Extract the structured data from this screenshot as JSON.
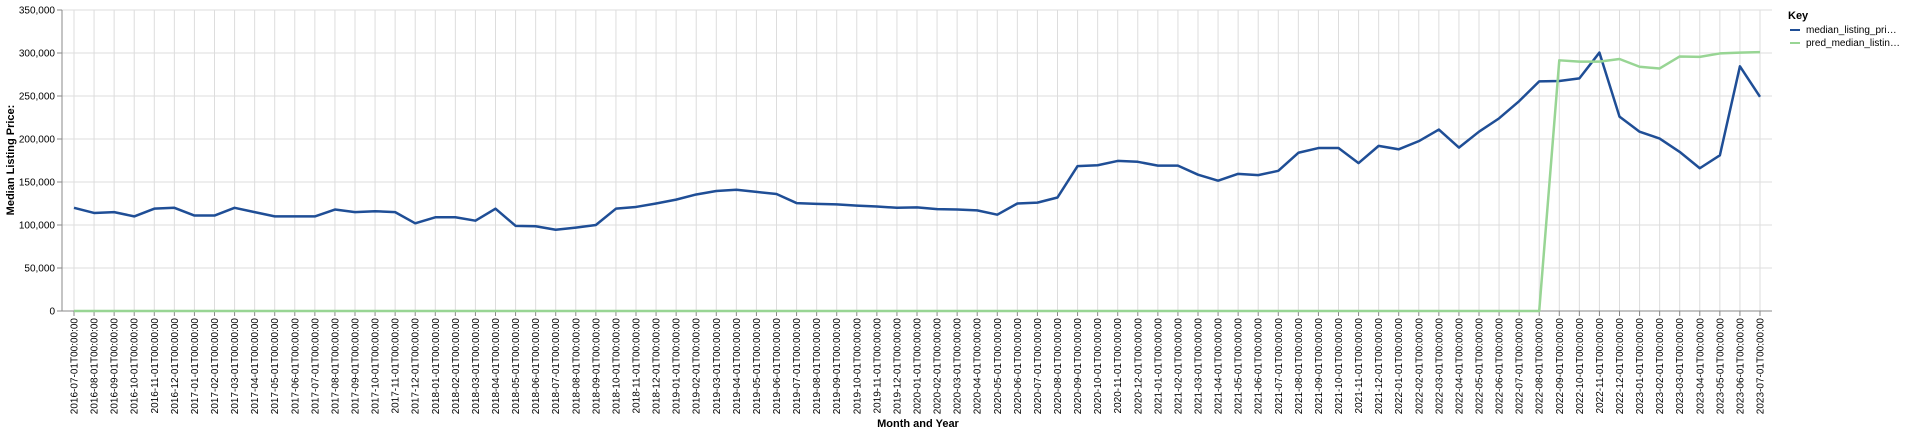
{
  "chart_data": {
    "type": "line",
    "xlabel": "Month and Year",
    "ylabel": "Median Listing Price:",
    "ylim": [
      0,
      350000
    ],
    "y_ticks": [
      "0",
      "50,000",
      "100,000",
      "150,000",
      "200,000",
      "250,000",
      "300,000",
      "350,000"
    ],
    "grid": true,
    "legend": {
      "title": "Key",
      "position": "top-right"
    },
    "categories": [
      "2016-07-01T00:00:00",
      "2016-08-01T00:00:00",
      "2016-09-01T00:00:00",
      "2016-10-01T00:00:00",
      "2016-11-01T00:00:00",
      "2016-12-01T00:00:00",
      "2017-01-01T00:00:00",
      "2017-02-01T00:00:00",
      "2017-03-01T00:00:00",
      "2017-04-01T00:00:00",
      "2017-05-01T00:00:00",
      "2017-06-01T00:00:00",
      "2017-07-01T00:00:00",
      "2017-08-01T00:00:00",
      "2017-09-01T00:00:00",
      "2017-10-01T00:00:00",
      "2017-11-01T00:00:00",
      "2017-12-01T00:00:00",
      "2018-01-01T00:00:00",
      "2018-02-01T00:00:00",
      "2018-03-01T00:00:00",
      "2018-04-01T00:00:00",
      "2018-05-01T00:00:00",
      "2018-06-01T00:00:00",
      "2018-07-01T00:00:00",
      "2018-08-01T00:00:00",
      "2018-09-01T00:00:00",
      "2018-10-01T00:00:00",
      "2018-11-01T00:00:00",
      "2018-12-01T00:00:00",
      "2019-01-01T00:00:00",
      "2019-02-01T00:00:00",
      "2019-03-01T00:00:00",
      "2019-04-01T00:00:00",
      "2019-05-01T00:00:00",
      "2019-06-01T00:00:00",
      "2019-07-01T00:00:00",
      "2019-08-01T00:00:00",
      "2019-09-01T00:00:00",
      "2019-10-01T00:00:00",
      "2019-11-01T00:00:00",
      "2019-12-01T00:00:00",
      "2020-01-01T00:00:00",
      "2020-02-01T00:00:00",
      "2020-03-01T00:00:00",
      "2020-04-01T00:00:00",
      "2020-05-01T00:00:00",
      "2020-06-01T00:00:00",
      "2020-07-01T00:00:00",
      "2020-08-01T00:00:00",
      "2020-09-01T00:00:00",
      "2020-10-01T00:00:00",
      "2020-11-01T00:00:00",
      "2020-12-01T00:00:00",
      "2021-01-01T00:00:00",
      "2021-02-01T00:00:00",
      "2021-03-01T00:00:00",
      "2021-04-01T00:00:00",
      "2021-05-01T00:00:00",
      "2021-06-01T00:00:00",
      "2021-07-01T00:00:00",
      "2021-08-01T00:00:00",
      "2021-09-01T00:00:00",
      "2021-10-01T00:00:00",
      "2021-11-01T00:00:00",
      "2021-12-01T00:00:00",
      "2022-01-01T00:00:00",
      "2022-02-01T00:00:00",
      "2022-03-01T00:00:00",
      "2022-04-01T00:00:00",
      "2022-05-01T00:00:00",
      "2022-06-01T00:00:00",
      "2022-07-01T00:00:00",
      "2022-08-01T00:00:00",
      "2022-09-01T00:00:00",
      "2022-10-01T00:00:00",
      "2022-11-01T00:00:00",
      "2022-12-01T00:00:00",
      "2023-01-01T00:00:00",
      "2023-02-01T00:00:00",
      "2023-03-01T00:00:00",
      "2023-04-01T00:00:00",
      "2023-05-01T00:00:00",
      "2023-06-01T00:00:00",
      "2023-07-01T00:00:00"
    ],
    "series": [
      {
        "name": "median_listing_pri…",
        "color": "#1f4e96",
        "values": [
          120000,
          114000,
          115000,
          110000,
          119000,
          120000,
          111000,
          111000,
          120000,
          115000,
          110000,
          110000,
          110000,
          118000,
          115000,
          116000,
          115000,
          102000,
          109000,
          109000,
          105000,
          119000,
          99000,
          98500,
          94500,
          97000,
          100000,
          119000,
          121000,
          125000,
          129500,
          135500,
          139500,
          141000,
          138500,
          136000,
          125500,
          124500,
          124000,
          122500,
          121500,
          120000,
          120500,
          118500,
          118000,
          117000,
          112000,
          125000,
          126000,
          132000,
          168500,
          169500,
          174500,
          173500,
          169000,
          169000,
          158500,
          151500,
          159500,
          158000,
          163000,
          184000,
          189500,
          189500,
          172000,
          192000,
          188000,
          197500,
          211000,
          190000,
          208500,
          224000,
          244000,
          267000,
          267500,
          270500,
          300500,
          226000,
          208500,
          200500,
          185000,
          166000,
          181000,
          284500,
          249000
        ]
      },
      {
        "name": "pred_median_listin…",
        "color": "#98d594",
        "values": [
          0,
          0,
          0,
          0,
          0,
          0,
          0,
          0,
          0,
          0,
          0,
          0,
          0,
          0,
          0,
          0,
          0,
          0,
          0,
          0,
          0,
          0,
          0,
          0,
          0,
          0,
          0,
          0,
          0,
          0,
          0,
          0,
          0,
          0,
          0,
          0,
          0,
          0,
          0,
          0,
          0,
          0,
          0,
          0,
          0,
          0,
          0,
          0,
          0,
          0,
          0,
          0,
          0,
          0,
          0,
          0,
          0,
          0,
          0,
          0,
          0,
          0,
          0,
          0,
          0,
          0,
          0,
          0,
          0,
          0,
          0,
          0,
          0,
          0,
          291500,
          290000,
          290000,
          293000,
          284000,
          282000,
          296000,
          295500,
          299500,
          300500,
          301000
        ]
      }
    ]
  }
}
